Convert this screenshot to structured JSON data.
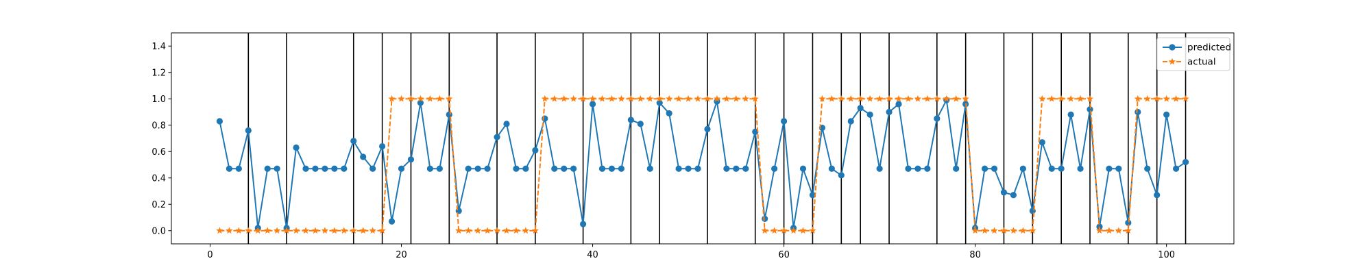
{
  "chart_data": {
    "type": "line",
    "title": "",
    "xlabel": "",
    "ylabel": "",
    "xlim": [
      -4.05,
      107.05
    ],
    "ylim": [
      -0.1,
      1.5
    ],
    "x_ticks": [
      0,
      20,
      40,
      60,
      80,
      100
    ],
    "x_tick_labels": [
      "0",
      "20",
      "40",
      "60",
      "80",
      "100"
    ],
    "y_ticks": [
      0.0,
      0.2,
      0.4,
      0.6,
      0.8,
      1.0,
      1.2,
      1.4
    ],
    "y_tick_labels": [
      "0.0",
      "0.2",
      "0.4",
      "0.6",
      "0.8",
      "1.0",
      "1.2",
      "1.4"
    ],
    "grid": false,
    "legend_position": "upper right",
    "vertical_lines_x": [
      4,
      8,
      15,
      18,
      21,
      25,
      30,
      34,
      39,
      44,
      47,
      52,
      57,
      60,
      63,
      66,
      68,
      71,
      76,
      79,
      83,
      86,
      89,
      92,
      96,
      99,
      102
    ],
    "vertical_line_color": "#000000",
    "x": [
      1,
      2,
      3,
      4,
      5,
      6,
      7,
      8,
      9,
      10,
      11,
      12,
      13,
      14,
      15,
      16,
      17,
      18,
      19,
      20,
      21,
      22,
      23,
      24,
      25,
      26,
      27,
      28,
      29,
      30,
      31,
      32,
      33,
      34,
      35,
      36,
      37,
      38,
      39,
      40,
      41,
      42,
      43,
      44,
      45,
      46,
      47,
      48,
      49,
      50,
      51,
      52,
      53,
      54,
      55,
      56,
      57,
      58,
      59,
      60,
      61,
      62,
      63,
      64,
      65,
      66,
      67,
      68,
      69,
      70,
      71,
      72,
      73,
      74,
      75,
      76,
      77,
      78,
      79,
      80,
      81,
      82,
      83,
      84,
      85,
      86,
      87,
      88,
      89,
      90,
      91,
      92,
      93,
      94,
      95,
      96,
      97,
      98,
      99,
      100,
      101,
      102
    ],
    "series": [
      {
        "name": "predicted",
        "color": "#1f77b4",
        "style": "solid",
        "marker": "circle",
        "values": [
          0.83,
          0.47,
          0.47,
          0.76,
          0.02,
          0.47,
          0.47,
          0.02,
          0.63,
          0.47,
          0.47,
          0.47,
          0.47,
          0.47,
          0.68,
          0.56,
          0.47,
          0.64,
          0.07,
          0.47,
          0.54,
          0.97,
          0.47,
          0.47,
          0.88,
          0.15,
          0.47,
          0.47,
          0.47,
          0.71,
          0.81,
          0.47,
          0.47,
          0.61,
          0.85,
          0.47,
          0.47,
          0.47,
          0.05,
          0.96,
          0.47,
          0.47,
          0.47,
          0.84,
          0.81,
          0.47,
          0.97,
          0.89,
          0.47,
          0.47,
          0.47,
          0.77,
          0.98,
          0.47,
          0.47,
          0.47,
          0.75,
          0.09,
          0.47,
          0.83,
          0.02,
          0.47,
          0.27,
          0.78,
          0.47,
          0.42,
          0.83,
          0.93,
          0.88,
          0.47,
          0.9,
          0.96,
          0.47,
          0.47,
          0.47,
          0.85,
          0.99,
          0.47,
          0.96,
          0.02,
          0.47,
          0.47,
          0.29,
          0.27,
          0.47,
          0.15,
          0.67,
          0.47,
          0.47,
          0.88,
          0.47,
          0.92,
          0.03,
          0.47,
          0.47,
          0.06,
          0.9,
          0.47,
          0.27,
          0.88,
          0.47,
          0.52
        ]
      },
      {
        "name": "actual",
        "color": "#ff7f0e",
        "style": "dashed",
        "marker": "star",
        "values": [
          0,
          0,
          0,
          0,
          0,
          0,
          0,
          0,
          0,
          0,
          0,
          0,
          0,
          0,
          0,
          0,
          0,
          0,
          1,
          1,
          1,
          1,
          1,
          1,
          1,
          0,
          0,
          0,
          0,
          0,
          0,
          0,
          0,
          0,
          1,
          1,
          1,
          1,
          1,
          1,
          1,
          1,
          1,
          1,
          1,
          1,
          1,
          1,
          1,
          1,
          1,
          1,
          1,
          1,
          1,
          1,
          1,
          0,
          0,
          0,
          0,
          0,
          0,
          1,
          1,
          1,
          1,
          1,
          1,
          1,
          1,
          1,
          1,
          1,
          1,
          1,
          1,
          1,
          1,
          0,
          0,
          0,
          0,
          0,
          0,
          0,
          1,
          1,
          1,
          1,
          1,
          1,
          0,
          0,
          0,
          0,
          1,
          1,
          1,
          1,
          1,
          1
        ]
      }
    ]
  }
}
